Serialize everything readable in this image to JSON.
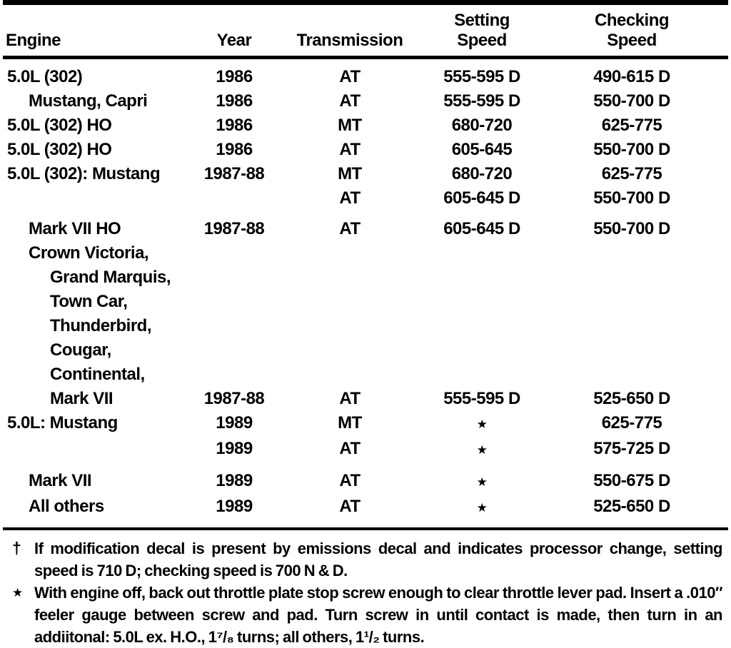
{
  "table": {
    "headers": {
      "engine": "Engine",
      "year": "Year",
      "transmission": "Transmission",
      "setting1": "Setting",
      "setting2": "Speed",
      "checking1": "Checking",
      "checking2": "Speed"
    },
    "rows": [
      {
        "engine": "5.0L (302)",
        "year": "1986",
        "transmission": "AT",
        "setting": "555-595 D",
        "checking": "490-615 D"
      },
      {
        "engine": "Mustang, Capri",
        "year": "1986",
        "transmission": "AT",
        "setting": "555-595 D",
        "checking": "550-700 D"
      },
      {
        "engine": "5.0L (302) HO",
        "year": "1986",
        "transmission": "MT",
        "setting": "680-720",
        "checking": "625-775"
      },
      {
        "engine": "5.0L (302) HO",
        "year": "1986",
        "transmission": "AT",
        "setting": "605-645",
        "checking": "550-700 D"
      },
      {
        "engine": "5.0L (302): Mustang",
        "year": "1987-88",
        "transmission": "MT",
        "setting": "680-720",
        "checking": "625-775"
      },
      {
        "engine": "",
        "year": "",
        "transmission": "AT",
        "setting": "605-645 D",
        "checking": "550-700 D"
      },
      {
        "engine": "Mark VII HO",
        "year": "1987-88",
        "transmission": "AT",
        "setting": "605-645 D",
        "checking": "550-700 D"
      },
      {
        "engine": "Crown Victoria,",
        "year": "",
        "transmission": "",
        "setting": "",
        "checking": ""
      },
      {
        "engine": "Grand Marquis,",
        "year": "",
        "transmission": "",
        "setting": "",
        "checking": ""
      },
      {
        "engine": "Town Car,",
        "year": "",
        "transmission": "",
        "setting": "",
        "checking": ""
      },
      {
        "engine": "Thunderbird,",
        "year": "",
        "transmission": "",
        "setting": "",
        "checking": ""
      },
      {
        "engine": "Cougar,",
        "year": "",
        "transmission": "",
        "setting": "",
        "checking": ""
      },
      {
        "engine": "Continental,",
        "year": "",
        "transmission": "",
        "setting": "",
        "checking": ""
      },
      {
        "engine": "Mark VII",
        "year": "1987-88",
        "transmission": "AT",
        "setting": "555-595 D",
        "checking": "525-650 D"
      },
      {
        "engine": "5.0L: Mustang",
        "year": "1989",
        "transmission": "MT",
        "setting": "★",
        "checking": "625-775"
      },
      {
        "engine": "",
        "year": "1989",
        "transmission": "AT",
        "setting": "★",
        "checking": "575-725 D"
      },
      {
        "engine": "Mark VII",
        "year": "1989",
        "transmission": "AT",
        "setting": "★",
        "checking": "550-675 D"
      },
      {
        "engine": "All others",
        "year": "1989",
        "transmission": "AT",
        "setting": "★",
        "checking": "525-650 D"
      }
    ]
  },
  "footnotes": [
    {
      "marker": "†",
      "text": "If modification decal is present by emissions decal and indicates processor change, setting speed is 710 D; checking speed is 700 N & D."
    },
    {
      "marker": "★",
      "text": "With engine off, back out throttle plate stop screw enough to clear throttle lever pad. Insert a .010″ feeler gauge between screw and pad. Turn screw in until contact is made, then turn in an addiitonal: 5.0L ex. H.O., 1⁷/₈ turns; all others, 1¹/₂ turns."
    }
  ]
}
